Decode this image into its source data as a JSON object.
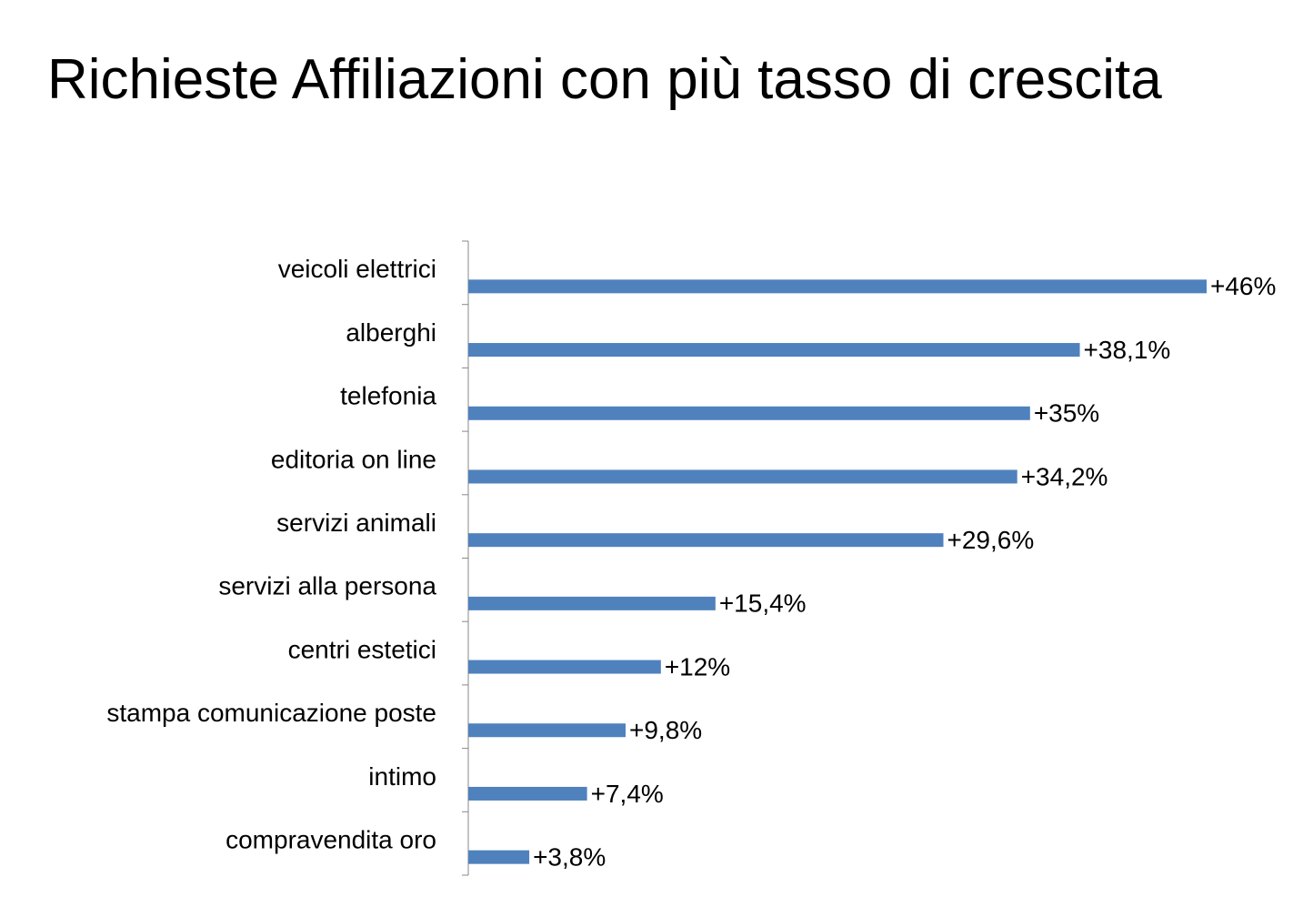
{
  "chart_data": {
    "type": "bar",
    "orientation": "horizontal",
    "title": "Richieste Affiliazioni con più tasso di crescita",
    "categories": [
      "veicoli elettrici",
      "alberghi",
      "telefonia",
      "editoria on line",
      "servizi animali",
      "servizi alla persona",
      "centri estetici",
      "stampa comunicazione poste",
      "intimo",
      "compravendita oro"
    ],
    "values": [
      46,
      38.1,
      35,
      34.2,
      29.6,
      15.4,
      12,
      9.8,
      7.4,
      3.8
    ],
    "value_labels": [
      "+46%",
      "+38,1%",
      "+35%",
      "+34,2%",
      "+29,6%",
      "+15,4%",
      "+12%",
      "+9,8%",
      "+7,4%",
      "+3,8%"
    ],
    "color": "#4f81bd"
  }
}
